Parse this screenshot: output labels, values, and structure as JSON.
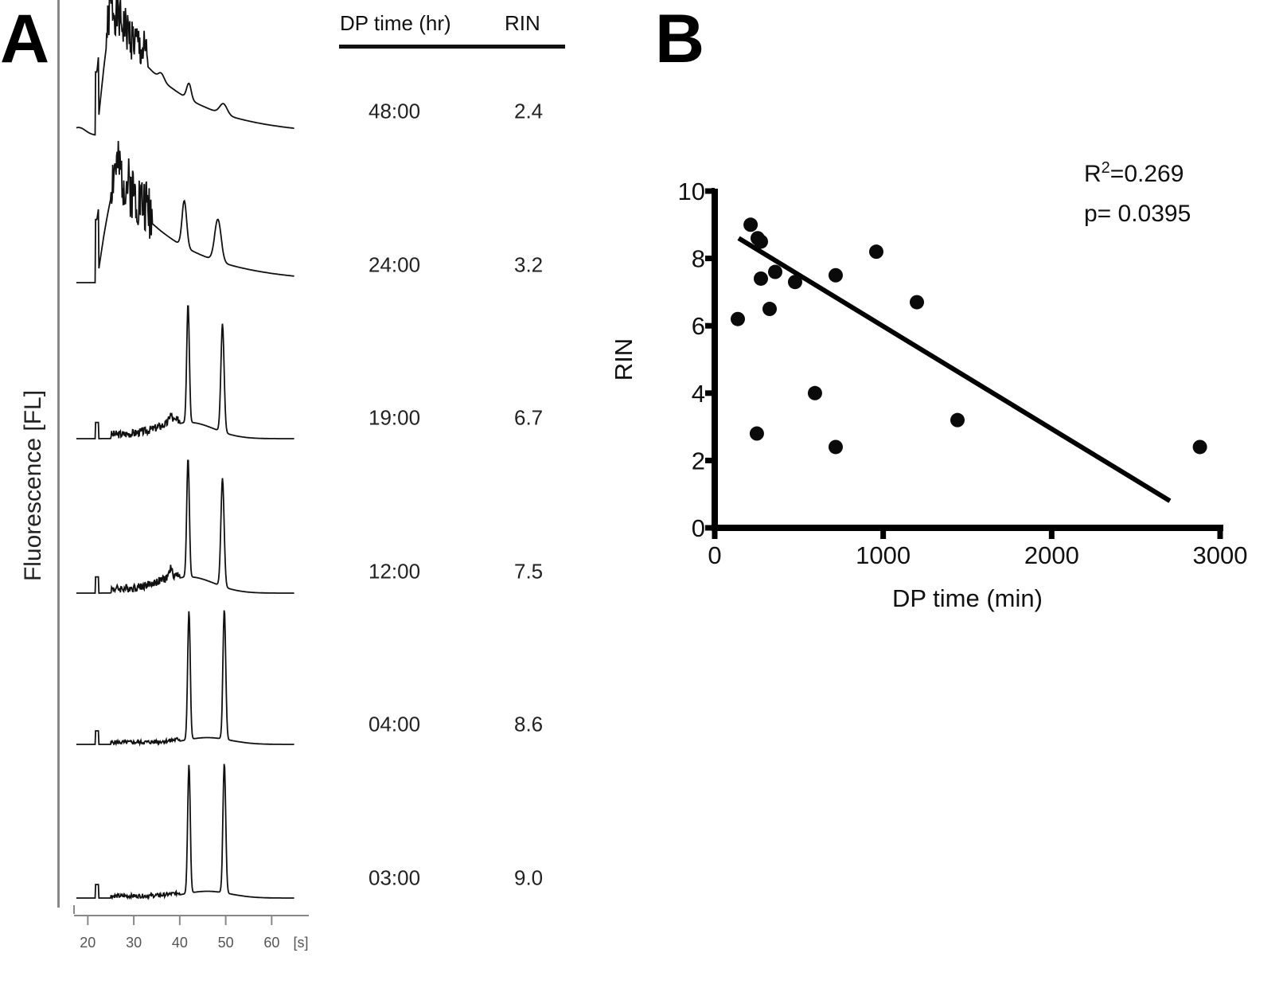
{
  "panels": {
    "a_label": "A",
    "b_label": "B"
  },
  "panel_a": {
    "y_axis_label": "Fluorescence [FL]",
    "x_axis_unit": "[s]",
    "x_ticks": [
      "20",
      "30",
      "40",
      "50",
      "60"
    ],
    "x_range": [
      17,
      66
    ],
    "table_headers": {
      "time": "DP time (hr)",
      "rin": "RIN"
    },
    "rows": [
      {
        "time": "48:00",
        "rin": "2.4",
        "profile": "degraded-heavy"
      },
      {
        "time": "24:00",
        "rin": "3.2",
        "profile": "degraded"
      },
      {
        "time": "19:00",
        "rin": "6.7",
        "profile": "partial"
      },
      {
        "time": "12:00",
        "rin": "7.5",
        "profile": "partial"
      },
      {
        "time": "04:00",
        "rin": "8.6",
        "profile": "intact"
      },
      {
        "time": "03:00",
        "rin": "9.0",
        "profile": "intact"
      }
    ],
    "peaks_s": {
      "marker": 22,
      "rRNA_18S": 42,
      "rRNA_28S": 49.5
    }
  },
  "chart_data": [
    {
      "type": "line",
      "title": "Electropherograms by DP time",
      "xlabel": "[s]",
      "ylabel": "Fluorescence [FL]",
      "xlim": [
        17,
        66
      ],
      "x_ticks": [
        20,
        30,
        40,
        50,
        60
      ],
      "series": [
        {
          "name": "48:00 (RIN 2.4)"
        },
        {
          "name": "24:00 (RIN 3.2)"
        },
        {
          "name": "19:00 (RIN 6.7)"
        },
        {
          "name": "12:00 (RIN 7.5)"
        },
        {
          "name": "04:00 (RIN 8.6)"
        },
        {
          "name": "03:00 (RIN 9.0)"
        }
      ]
    },
    {
      "type": "scatter",
      "title": "",
      "xlabel": "DP time (min)",
      "ylabel": "RIN",
      "xlim": [
        0,
        3000
      ],
      "ylim": [
        0,
        10
      ],
      "x_ticks": [
        0,
        1000,
        2000,
        3000
      ],
      "y_ticks": [
        0,
        2,
        4,
        6,
        8,
        10
      ],
      "grid": false,
      "points": [
        {
          "x": 137,
          "y": 6.2
        },
        {
          "x": 213,
          "y": 9.0
        },
        {
          "x": 255,
          "y": 8.6
        },
        {
          "x": 274,
          "y": 8.5
        },
        {
          "x": 274,
          "y": 7.4
        },
        {
          "x": 359,
          "y": 7.6
        },
        {
          "x": 326,
          "y": 6.5
        },
        {
          "x": 477,
          "y": 7.3
        },
        {
          "x": 718,
          "y": 7.5
        },
        {
          "x": 959,
          "y": 8.2
        },
        {
          "x": 1200,
          "y": 6.7
        },
        {
          "x": 250,
          "y": 2.8
        },
        {
          "x": 595,
          "y": 4.0
        },
        {
          "x": 718,
          "y": 2.4
        },
        {
          "x": 1441,
          "y": 3.2
        },
        {
          "x": 2880,
          "y": 2.4
        }
      ],
      "fit_line": {
        "x0": 142,
        "y0": 8.6,
        "x1": 2702,
        "y1": 0.8
      },
      "annotations": {
        "r2_prefix": "R",
        "r2_sup": "2",
        "r2_value": "=0.269",
        "p_text": "p= 0.0395"
      }
    }
  ]
}
